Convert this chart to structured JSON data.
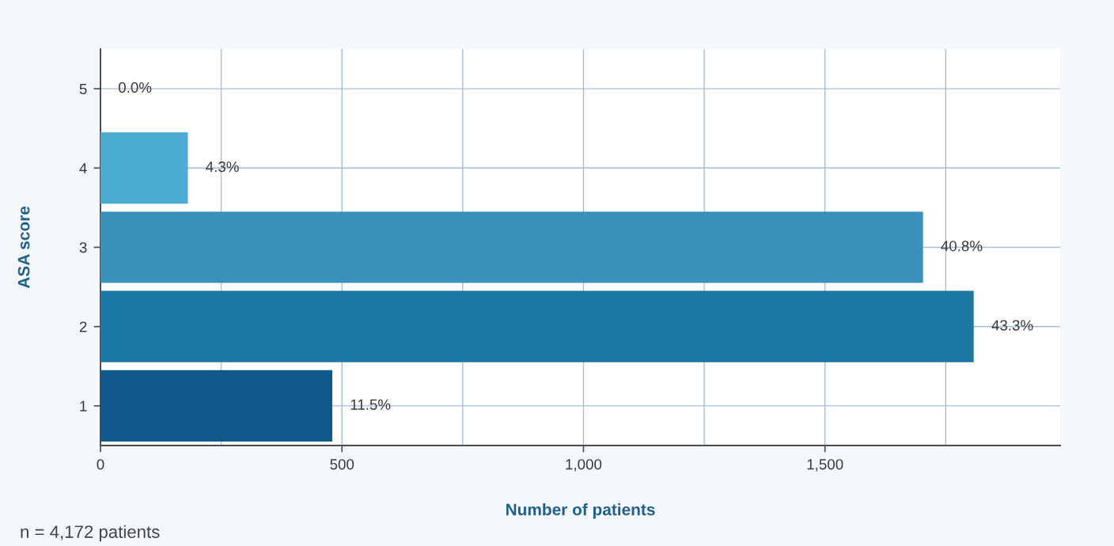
{
  "chart_data": {
    "type": "bar",
    "orientation": "horizontal",
    "xlabel": "Number of patients",
    "ylabel": "ASA score",
    "categories": [
      "5",
      "4",
      "3",
      "2",
      "1"
    ],
    "values": [
      0,
      181,
      1703,
      1808,
      480
    ],
    "colors": [
      "#7fc9e6",
      "#4badd3",
      "#3a92bc",
      "#1d77a3",
      "#12598b"
    ],
    "xlim": [
      0,
      1987
    ],
    "xticks": [
      0,
      {
        "value": 250,
        "label": null
      },
      500,
      {
        "value": 750,
        "label": null
      },
      {
        "value": 1000,
        "label": "1,000"
      },
      {
        "value": 1250,
        "label": null
      },
      {
        "value": 1500,
        "label": "1,500"
      },
      {
        "value": 1750,
        "label": null
      }
    ],
    "grid": true,
    "annotations": [
      {
        "text": "0.0%",
        "x": 0,
        "y": "5"
      },
      {
        "text": "4.3%",
        "x": 181,
        "y": "4"
      },
      {
        "text": "40.8%",
        "x": 1703,
        "y": "3"
      },
      {
        "text": "43.3%",
        "x": 1808,
        "y": "2"
      },
      {
        "text": "11.5%",
        "x": 480,
        "y": "1"
      },
      "n = 4,172 patients"
    ]
  }
}
